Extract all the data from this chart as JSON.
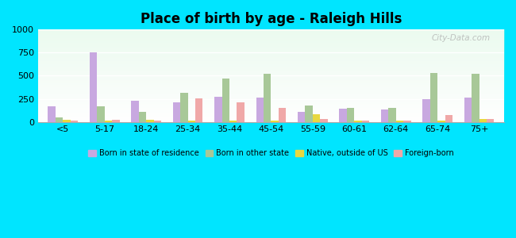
{
  "title": "Place of birth by age - Raleigh Hills",
  "categories": [
    "<5",
    "5-17",
    "18-24",
    "25-34",
    "35-44",
    "45-54",
    "55-59",
    "60-61",
    "62-64",
    "65-74",
    "75+"
  ],
  "series": {
    "Born in state of residence": [
      165,
      750,
      230,
      215,
      270,
      265,
      105,
      145,
      130,
      245,
      265
    ],
    "Born in other state": [
      45,
      170,
      110,
      315,
      470,
      525,
      175,
      150,
      155,
      530,
      525
    ],
    "Native, outside of US": [
      20,
      15,
      25,
      15,
      15,
      10,
      80,
      10,
      10,
      12,
      30
    ],
    "Foreign-born": [
      15,
      20,
      10,
      255,
      210,
      155,
      35,
      15,
      10,
      75,
      35
    ]
  },
  "colors": {
    "Born in state of residence": "#c8a8e0",
    "Born in other state": "#a8c898",
    "Native, outside of US": "#e8d840",
    "Foreign-born": "#f0a8a8"
  },
  "ylim": [
    0,
    1000
  ],
  "yticks": [
    0,
    250,
    500,
    750,
    1000
  ],
  "bar_width": 0.18,
  "legend_labels": [
    "Born in state of residence",
    "Born in other state",
    "Native, outside of US",
    "Foreign-born"
  ],
  "bg_outer": "#00e5ff",
  "watermark": "City-Data.com"
}
